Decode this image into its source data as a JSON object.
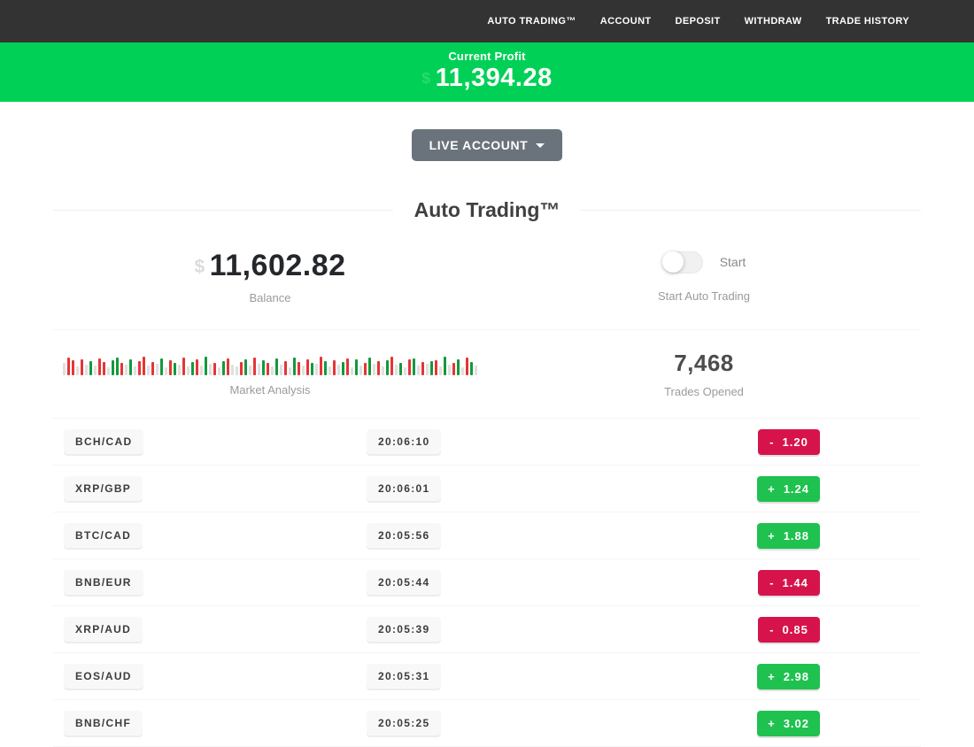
{
  "nav": {
    "items": [
      {
        "label": "AUTO TRADING™"
      },
      {
        "label": "ACCOUNT"
      },
      {
        "label": "DEPOSIT"
      },
      {
        "label": "WITHDRAW"
      },
      {
        "label": "TRADE HISTORY"
      }
    ]
  },
  "banner": {
    "label": "Current Profit",
    "value": "11,394.28",
    "currency_ghost": "$",
    "background_color": "#00d156"
  },
  "account": {
    "button_label": "LIVE ACCOUNT"
  },
  "page": {
    "heading": "Auto Trading™"
  },
  "stats": {
    "balance": {
      "value": "11,602.82",
      "label": "Balance",
      "currency_ghost": "$"
    },
    "auto_trading": {
      "toggle_label": "Start",
      "label": "Start Auto Trading",
      "toggle_state": "off"
    },
    "market": {
      "label": "Market Analysis"
    },
    "trades": {
      "value": "7,468",
      "label": "Trades Opened"
    }
  },
  "market_bars": {
    "palette": {
      "r": "#e53535",
      "g": "#13993d",
      "n": "#dfdfdf"
    },
    "bars": [
      "n14",
      "r20",
      "r17",
      "n10",
      "r18",
      "n12",
      "g16",
      "n11",
      "r19",
      "r15",
      "n9",
      "g17",
      "g20",
      "r14",
      "n12",
      "g18",
      "n10",
      "r16",
      "r21",
      "n11",
      "r15",
      "n13",
      "g19",
      "n9",
      "r17",
      "g14",
      "n12",
      "r20",
      "n10",
      "g15",
      "r18",
      "n11",
      "g21",
      "n13",
      "r14",
      "n9",
      "g16",
      "r19",
      "n12",
      "n10",
      "r15",
      "g18",
      "n11",
      "r20",
      "n13",
      "g17",
      "r14",
      "n10",
      "g19",
      "n12",
      "r16",
      "n9",
      "g20",
      "r15",
      "n11",
      "r18",
      "g14",
      "n13",
      "r21",
      "g16",
      "n10",
      "r17",
      "n12",
      "g15",
      "r19",
      "n9",
      "g18",
      "n11",
      "r14",
      "g20",
      "n13",
      "r16",
      "n10",
      "g17",
      "r21",
      "n12",
      "g14",
      "n9",
      "r18",
      "g19",
      "n11",
      "r15",
      "n13",
      "g16",
      "r17",
      "n10",
      "g21",
      "n12",
      "r14",
      "g18",
      "n9",
      "r20",
      "g15",
      "n11"
    ]
  },
  "trades_table": {
    "rows": [
      {
        "pair": "BCH/CAD",
        "time": "20:06:10",
        "sign": "-",
        "value": "1.20",
        "direction": "loss"
      },
      {
        "pair": "XRP/GBP",
        "time": "20:06:01",
        "sign": "+",
        "value": "1.24",
        "direction": "gain"
      },
      {
        "pair": "BTC/CAD",
        "time": "20:05:56",
        "sign": "+",
        "value": "1.88",
        "direction": "gain"
      },
      {
        "pair": "BNB/EUR",
        "time": "20:05:44",
        "sign": "-",
        "value": "1.44",
        "direction": "loss"
      },
      {
        "pair": "XRP/AUD",
        "time": "20:05:39",
        "sign": "-",
        "value": "0.85",
        "direction": "loss"
      },
      {
        "pair": "EOS/AUD",
        "time": "20:05:31",
        "sign": "+",
        "value": "2.98",
        "direction": "gain"
      },
      {
        "pair": "BNB/CHF",
        "time": "20:05:25",
        "sign": "+",
        "value": "3.02",
        "direction": "gain"
      }
    ]
  },
  "colors": {
    "gain": "#1fc14f",
    "loss": "#d6134b",
    "nav_background": "#333333",
    "button_gray": "#6a737b"
  }
}
